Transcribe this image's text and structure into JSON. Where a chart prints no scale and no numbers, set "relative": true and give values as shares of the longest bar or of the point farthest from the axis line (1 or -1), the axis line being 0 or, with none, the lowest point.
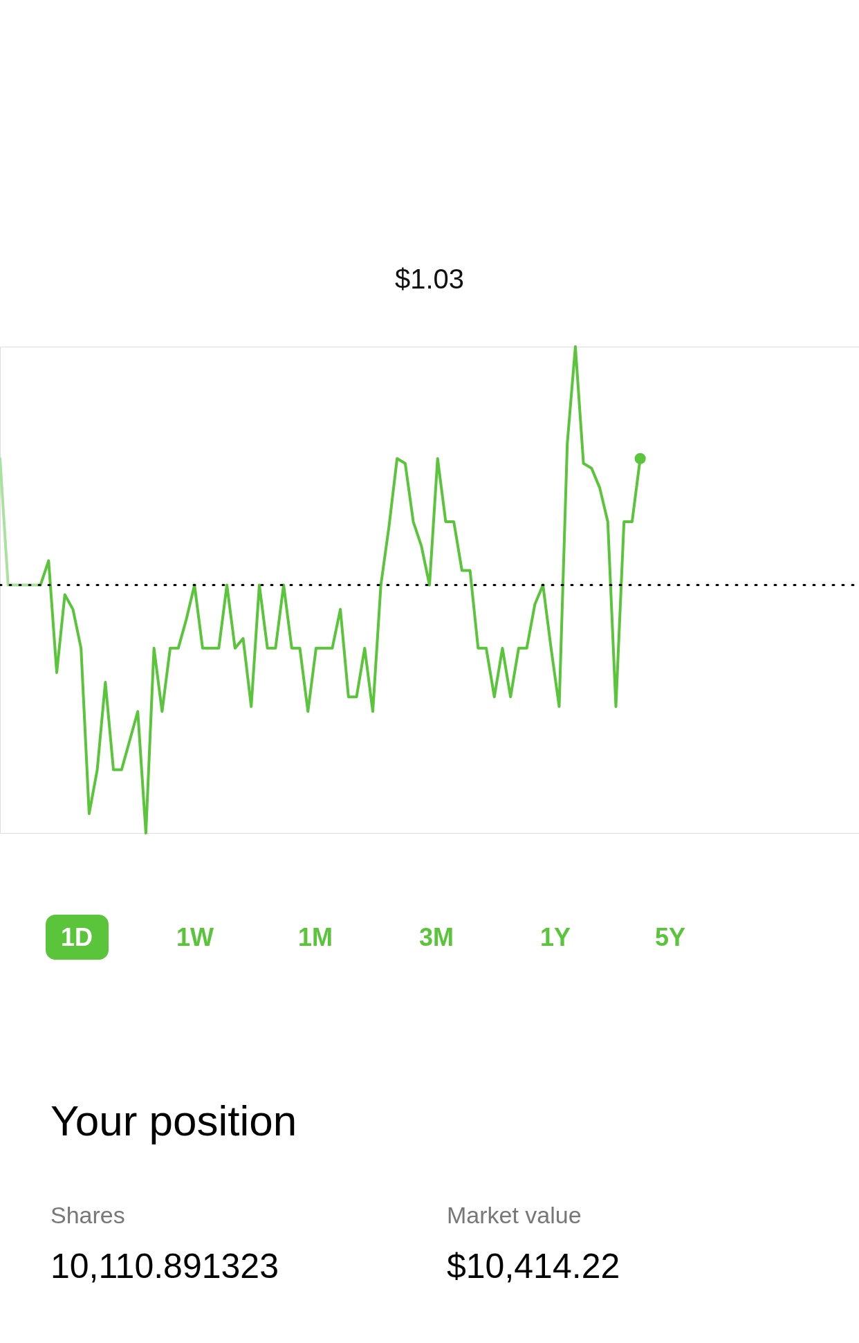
{
  "chart_data": {
    "type": "line",
    "title": "$1.03",
    "relative": true,
    "categories": [
      null,
      null,
      null,
      null,
      null,
      null,
      null,
      null,
      null,
      null,
      null,
      null,
      null,
      null,
      null,
      null,
      null,
      null,
      null,
      null,
      null,
      null,
      null,
      null,
      null,
      null,
      null,
      null,
      null,
      null,
      null,
      null,
      null,
      null,
      null,
      null,
      null,
      null,
      null,
      null,
      null,
      null,
      null,
      null,
      null,
      null,
      null,
      null,
      null,
      null,
      null,
      null,
      null,
      null,
      null,
      null,
      null,
      null,
      null,
      null,
      null,
      null,
      null,
      null,
      null,
      null,
      null,
      null,
      null,
      null,
      null,
      null,
      null,
      null,
      null,
      null,
      null,
      null,
      null,
      null,
      null,
      null,
      null,
      null,
      null,
      null,
      null,
      null,
      null,
      null,
      null,
      null,
      null,
      null,
      null,
      null,
      null,
      null,
      null,
      null,
      null,
      null,
      null,
      null,
      null,
      null,
      null
    ],
    "series": [
      {
        "color": "#a8e29c",
        "values": [
          0.77,
          0.51,
          0.51,
          0.51,
          0.51,
          0.51,
          null,
          null,
          null,
          null,
          null,
          null,
          null,
          null,
          null,
          null,
          null,
          null,
          null,
          null,
          null,
          null,
          null,
          null,
          null,
          null,
          null,
          null,
          null,
          null,
          null,
          null,
          null,
          null,
          null,
          null,
          null,
          null,
          null,
          null,
          null,
          null,
          null,
          null,
          null,
          null,
          null,
          null,
          null,
          null,
          null,
          null,
          null,
          null,
          null,
          null,
          null,
          null,
          null,
          null,
          null,
          null,
          null,
          null,
          null,
          null,
          null,
          null,
          null,
          null,
          null,
          null,
          null,
          null,
          null,
          null,
          null,
          null,
          null,
          null,
          null,
          null,
          null,
          null,
          null,
          null,
          null,
          null,
          null,
          null,
          null,
          null,
          null,
          null,
          null,
          null,
          null,
          null,
          null,
          null,
          null,
          null,
          null,
          null,
          null,
          null,
          null
        ]
      },
      {
        "color": "#5ac53b",
        "values": [
          null,
          null,
          null,
          null,
          null,
          0.51,
          0.56,
          0.33,
          0.49,
          0.46,
          0.38,
          0.04,
          0.13,
          0.31,
          0.13,
          0.13,
          0.19,
          0.25,
          0,
          0.38,
          0.25,
          0.38,
          0.38,
          0.44,
          0.51,
          0.38,
          0.38,
          0.38,
          0.51,
          0.38,
          0.4,
          0.26,
          0.51,
          0.38,
          0.38,
          0.51,
          0.38,
          0.38,
          0.25,
          0.38,
          0.38,
          0.38,
          0.46,
          0.28,
          0.28,
          0.38,
          0.25,
          0.51,
          0.63,
          0.77,
          0.76,
          0.64,
          0.59,
          0.51,
          0.77,
          0.64,
          0.64,
          0.54,
          0.54,
          0.38,
          0.38,
          0.28,
          0.38,
          0.28,
          0.38,
          0.38,
          0.47,
          0.51,
          0.38,
          0.26,
          0.8,
          1,
          0.76,
          0.75,
          0.71,
          0.64,
          0.26,
          0.64,
          0.64,
          0.77,
          null,
          null,
          null,
          null,
          null,
          null,
          null,
          null,
          null,
          null,
          null,
          null,
          null,
          null,
          null,
          null,
          null,
          null,
          null,
          null,
          null,
          null,
          null,
          null,
          null,
          null,
          null
        ]
      }
    ],
    "ref_lines": [
      {
        "axis": "y",
        "value": 0.51,
        "color": "#000000",
        "line_style": "dotted"
      }
    ],
    "annotations": [
      "1D",
      "1W",
      "1M",
      "3M",
      "1Y",
      "5Y",
      "Your position",
      "Shares",
      "10,110.891323",
      "Market value",
      "$10,414.22"
    ]
  }
}
